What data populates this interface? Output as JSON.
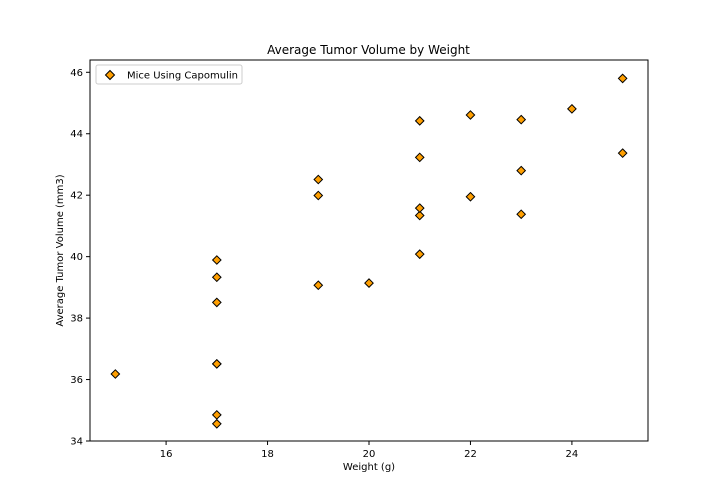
{
  "chart_data": {
    "type": "scatter",
    "title": "Average Tumor Volume by Weight",
    "xlabel": "Weight (g)",
    "ylabel": "Average Tumor Volume (mm3)",
    "xlim": [
      14.5,
      25.5
    ],
    "ylim": [
      34,
      46.4
    ],
    "xticks": [
      16,
      18,
      20,
      22,
      24
    ],
    "yticks": [
      34,
      36,
      38,
      40,
      42,
      44,
      46
    ],
    "grid": false,
    "legend_position": "top-left",
    "marker": "diamond",
    "marker_color": "#ff9f00",
    "marker_edge_color": "#000000",
    "series": [
      {
        "name": "Mice Using Capomulin",
        "points": [
          {
            "x": 15,
            "y": 36.18
          },
          {
            "x": 17,
            "y": 34.56
          },
          {
            "x": 17,
            "y": 34.85
          },
          {
            "x": 17,
            "y": 36.51
          },
          {
            "x": 17,
            "y": 36.51
          },
          {
            "x": 17,
            "y": 38.51
          },
          {
            "x": 17,
            "y": 39.33
          },
          {
            "x": 17,
            "y": 39.89
          },
          {
            "x": 19,
            "y": 39.07
          },
          {
            "x": 19,
            "y": 41.99
          },
          {
            "x": 19,
            "y": 42.51
          },
          {
            "x": 20,
            "y": 39.14
          },
          {
            "x": 21,
            "y": 40.08
          },
          {
            "x": 21,
            "y": 41.34
          },
          {
            "x": 21,
            "y": 41.58
          },
          {
            "x": 21,
            "y": 43.23
          },
          {
            "x": 21,
            "y": 44.42
          },
          {
            "x": 22,
            "y": 41.95
          },
          {
            "x": 22,
            "y": 44.61
          },
          {
            "x": 23,
            "y": 41.38
          },
          {
            "x": 23,
            "y": 42.8
          },
          {
            "x": 23,
            "y": 44.46
          },
          {
            "x": 24,
            "y": 44.81
          },
          {
            "x": 25,
            "y": 43.37
          },
          {
            "x": 25,
            "y": 45.8
          }
        ]
      }
    ]
  }
}
